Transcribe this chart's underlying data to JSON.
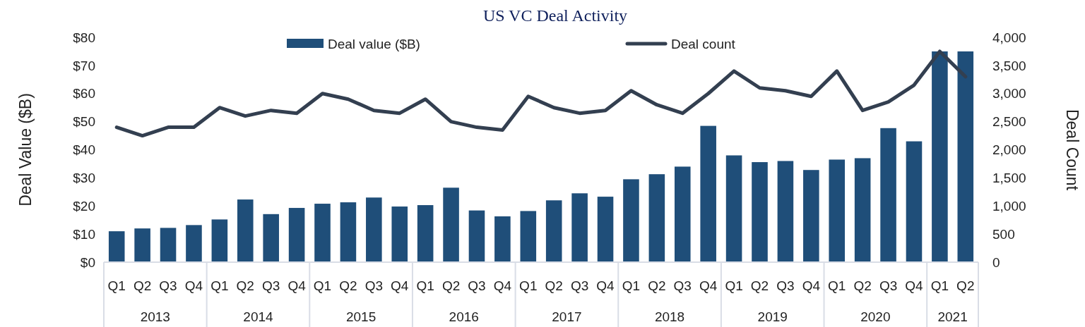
{
  "chart_data": {
    "type": "bar",
    "title": "US VC Deal Activity",
    "ylabel": "Deal Value ($B)",
    "y2label": "Deal Count",
    "legend": "top",
    "categories": [
      "Q1",
      "Q2",
      "Q3",
      "Q4",
      "Q1",
      "Q2",
      "Q3",
      "Q4",
      "Q1",
      "Q2",
      "Q3",
      "Q4",
      "Q1",
      "Q2",
      "Q3",
      "Q4",
      "Q1",
      "Q2",
      "Q3",
      "Q4",
      "Q1",
      "Q2",
      "Q3",
      "Q4",
      "Q1",
      "Q2",
      "Q3",
      "Q4",
      "Q1",
      "Q2",
      "Q3",
      "Q4",
      "Q1",
      "Q2"
    ],
    "annotations": [
      "2013",
      "2014",
      "2015",
      "2016",
      "2017",
      "2018",
      "2019",
      "2020",
      "2021"
    ],
    "series": [
      {
        "name": "Deal value ($B)",
        "color": "#1f4e79",
        "values": [
          11,
          12,
          12.2,
          13.2,
          15.2,
          22.3,
          17.1,
          19.3,
          20.8,
          21.3,
          23,
          19.8,
          20.3,
          26.5,
          18.4,
          16.3,
          18.2,
          22,
          24.5,
          23.3,
          29.5,
          31.3,
          34,
          48.5,
          38,
          35.6,
          36,
          32.8,
          36.5,
          37,
          47.7,
          43,
          75,
          75
        ]
      },
      {
        "name": "Deal count",
        "type": "line",
        "axis": "y2",
        "color": "#333f50",
        "values": [
          2400,
          2250,
          2400,
          2400,
          2750,
          2600,
          2700,
          2650,
          3000,
          2900,
          2700,
          2650,
          2900,
          2500,
          2400,
          2350,
          2950,
          2750,
          2650,
          2700,
          3050,
          2800,
          2650,
          3000,
          3400,
          3100,
          3050,
          2950,
          3400,
          2700,
          2850,
          3150,
          3750,
          3300
        ]
      }
    ],
    "ylim": [
      0,
      80
    ],
    "yticks": [
      {
        "value": 0,
        "label": "$0"
      },
      {
        "value": 10,
        "label": "$10"
      },
      {
        "value": 20,
        "label": "$20"
      },
      {
        "value": 30,
        "label": "$30"
      },
      {
        "value": 40,
        "label": "$40"
      },
      {
        "value": 50,
        "label": "$50"
      },
      {
        "value": 60,
        "label": "$60"
      },
      {
        "value": 70,
        "label": "$70"
      },
      {
        "value": 80,
        "label": "$80"
      }
    ],
    "y2lim": [
      0,
      4000
    ],
    "y2ticks": [
      0,
      500,
      {
        "value": 1000,
        "label": "1,000"
      },
      {
        "value": 1500,
        "label": "1,500"
      },
      {
        "value": 2000,
        "label": "2,000"
      },
      {
        "value": 2500,
        "label": "2,500"
      },
      {
        "value": 3000,
        "label": "3,000"
      },
      {
        "value": 3500,
        "label": "3,500"
      },
      {
        "value": 4000,
        "label": "4,000"
      }
    ]
  }
}
